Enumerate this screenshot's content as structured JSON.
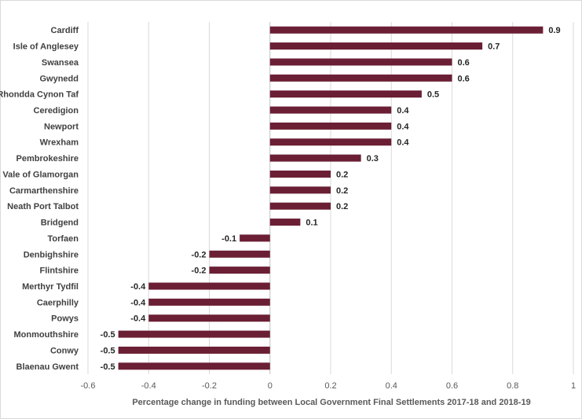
{
  "chart_data": {
    "type": "bar",
    "orientation": "horizontal",
    "categories": [
      "Cardiff",
      "Isle of Anglesey",
      "Swansea",
      "Gwynedd",
      "Rhondda Cynon Taf",
      "Ceredigion",
      "Newport",
      "Wrexham",
      "Pembrokeshire",
      "Vale of Glamorgan",
      "Carmarthenshire",
      "Neath Port Talbot",
      "Bridgend",
      "Torfaen",
      "Denbighshire",
      "Flintshire",
      "Merthyr Tydfil",
      "Caerphilly",
      "Powys",
      "Monmouthshire",
      "Conwy",
      "Blaenau Gwent"
    ],
    "values": [
      0.9,
      0.7,
      0.6,
      0.6,
      0.5,
      0.4,
      0.4,
      0.4,
      0.3,
      0.2,
      0.2,
      0.2,
      0.1,
      -0.1,
      -0.2,
      -0.2,
      -0.4,
      -0.4,
      -0.4,
      -0.5,
      -0.5,
      -0.5
    ],
    "value_labels": [
      "0.9",
      "0.7",
      "0.6",
      "0.6",
      "0.5",
      "0.4",
      "0.4",
      "0.4",
      "0.3",
      "0.2",
      "0.2",
      "0.2",
      "0.1",
      "-0.1",
      "-0.2",
      "-0.2",
      "-0.4",
      "-0.4",
      "-0.4",
      "-0.5",
      "-0.5",
      "-0.5"
    ],
    "xlabel": "Percentage change  in funding  between Local Government Final Settlements 2017-18 and 2018-19",
    "xlim": [
      -0.6,
      1
    ],
    "xticks": [
      -0.6,
      -0.4,
      -0.2,
      0,
      0.2,
      0.4,
      0.6,
      0.8,
      1
    ],
    "xtick_labels": [
      "-0.6",
      "-0.4",
      "-0.2",
      "0",
      "0.2",
      "0.4",
      "0.6",
      "0.8",
      "1"
    ],
    "grid": true,
    "legend": "none",
    "bar_color": "#6b1f34",
    "grid_color": "#d9d9d9"
  }
}
